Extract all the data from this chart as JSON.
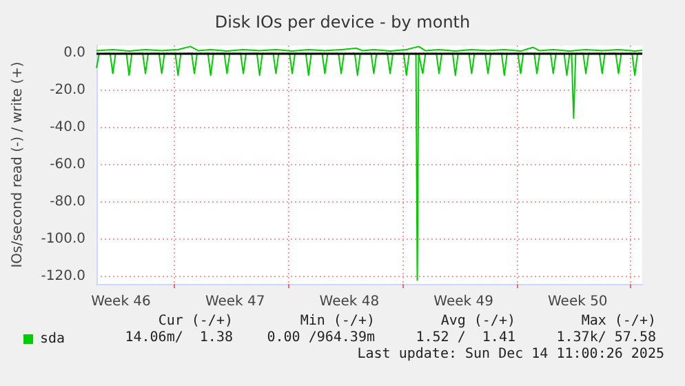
{
  "chart_data": {
    "type": "line",
    "title": "Disk IOs per device - by month",
    "ylabel": "IOs/second read (-) / write (+)",
    "xlim": [
      "2025-11-11T00:00",
      "2025-12-14T11:00"
    ],
    "xticks": [
      {
        "value": "2025-11-12T12:00",
        "label": "Week 46"
      },
      {
        "value": "2025-11-19T12:00",
        "label": "Week 47"
      },
      {
        "value": "2025-11-26T12:00",
        "label": "Week 48"
      },
      {
        "value": "2025-12-03T12:00",
        "label": "Week 49"
      },
      {
        "value": "2025-12-10T12:00",
        "label": "Week 50"
      },
      {
        "value": "2025-11-15T18:00",
        "label": null
      },
      {
        "value": "2025-11-22T18:00",
        "label": null
      },
      {
        "value": "2025-11-29T18:00",
        "label": null
      },
      {
        "value": "2025-12-06T18:00",
        "label": null
      },
      {
        "value": "2025-12-13T18:00",
        "label": null
      }
    ],
    "ylim": [
      -124,
      4
    ],
    "yticks": [
      {
        "value": -120,
        "label": "-120.0"
      },
      {
        "value": -100,
        "label": "-100.0"
      },
      {
        "value": -80,
        "label": "-80.0"
      },
      {
        "value": -60,
        "label": "-60.0"
      },
      {
        "value": -40,
        "label": "-40.0"
      },
      {
        "value": -20,
        "label": "-20.0"
      },
      {
        "value": 0,
        "label": "0.0"
      }
    ],
    "grid": true,
    "legend": "bottom left",
    "marker": "none",
    "line_style": "solid",
    "ref_lines": [
      {
        "axis": "y",
        "value": 0,
        "label": null,
        "color": "#000000"
      }
    ],
    "series": [
      {
        "name": "sda",
        "color": "#00cc00",
        "x": [
          "2025-11-11T00:00",
          "2025-11-11T04:00",
          "2025-11-11T20:00",
          "2025-11-12T00:00",
          "2025-11-12T04:00",
          "2025-11-12T20:00",
          "2025-11-13T00:00",
          "2025-11-13T04:00",
          "2025-11-13T20:00",
          "2025-11-14T00:00",
          "2025-11-14T04:00",
          "2025-11-14T20:00",
          "2025-11-15T00:00",
          "2025-11-15T04:00",
          "2025-11-15T20:00",
          "2025-11-16T00:00",
          "2025-11-16T04:00",
          "2025-11-16T20:00",
          "2025-11-17T00:00",
          "2025-11-17T04:00",
          "2025-11-17T20:00",
          "2025-11-18T00:00",
          "2025-11-18T04:00",
          "2025-11-18T20:00",
          "2025-11-19T00:00",
          "2025-11-19T04:00",
          "2025-11-19T20:00",
          "2025-11-20T00:00",
          "2025-11-20T04:00",
          "2025-11-20T20:00",
          "2025-11-21T00:00",
          "2025-11-21T04:00",
          "2025-11-21T20:00",
          "2025-11-22T00:00",
          "2025-11-22T04:00",
          "2025-11-22T20:00",
          "2025-11-23T00:00",
          "2025-11-23T04:00",
          "2025-11-23T20:00",
          "2025-11-24T00:00",
          "2025-11-24T04:00",
          "2025-11-24T20:00",
          "2025-11-25T00:00",
          "2025-11-25T04:00",
          "2025-11-25T20:00",
          "2025-11-26T00:00",
          "2025-11-26T04:00",
          "2025-11-26T20:00",
          "2025-11-27T00:00",
          "2025-11-27T04:00",
          "2025-11-27T20:00",
          "2025-11-28T00:00",
          "2025-11-28T04:00",
          "2025-11-28T20:00",
          "2025-11-29T00:00",
          "2025-11-29T04:00",
          "2025-11-29T20:00",
          "2025-11-30T00:00",
          "2025-11-30T04:00",
          "2025-11-30T14:00",
          "2025-11-30T16:00",
          "2025-11-30T18:00",
          "2025-12-01T00:00",
          "2025-12-01T04:00",
          "2025-12-01T20:00",
          "2025-12-02T00:00",
          "2025-12-02T04:00",
          "2025-12-02T20:00",
          "2025-12-03T00:00",
          "2025-12-03T04:00",
          "2025-12-03T20:00",
          "2025-12-04T00:00",
          "2025-12-04T04:00",
          "2025-12-04T20:00",
          "2025-12-05T00:00",
          "2025-12-05T04:00",
          "2025-12-05T20:00",
          "2025-12-06T00:00",
          "2025-12-06T04:00",
          "2025-12-06T20:00",
          "2025-12-07T00:00",
          "2025-12-07T04:00",
          "2025-12-07T20:00",
          "2025-12-08T00:00",
          "2025-12-08T04:00",
          "2025-12-08T20:00",
          "2025-12-09T00:00",
          "2025-12-09T04:00",
          "2025-12-09T16:00",
          "2025-12-09T20:00",
          "2025-12-10T00:00",
          "2025-12-10T03:00",
          "2025-12-10T06:00",
          "2025-12-10T09:00",
          "2025-12-10T20:00",
          "2025-12-11T00:00",
          "2025-12-11T04:00",
          "2025-12-11T20:00",
          "2025-12-12T00:00",
          "2025-12-12T04:00",
          "2025-12-12T20:00",
          "2025-12-13T00:00",
          "2025-12-13T04:00",
          "2025-12-13T20:00",
          "2025-12-14T00:00",
          "2025-12-14T04:00",
          "2025-12-14T11:00"
        ],
        "values": [
          -8,
          -0.4,
          -0.3,
          -11,
          -0.4,
          -0.3,
          -12,
          -0.4,
          -0.3,
          -11,
          -0.4,
          -0.3,
          -11,
          -0.4,
          -0.3,
          -12,
          -0.4,
          -0.3,
          -11,
          -0.4,
          -0.3,
          -12,
          -0.4,
          -0.3,
          -11,
          -0.4,
          -0.3,
          -11,
          -0.4,
          -0.3,
          -12,
          -0.4,
          -0.3,
          -11,
          -0.4,
          -0.3,
          -11,
          -0.4,
          -0.3,
          -12,
          -0.4,
          -0.3,
          -11,
          -0.4,
          -0.3,
          -11,
          -0.4,
          -0.3,
          -12,
          -0.4,
          -0.3,
          -11,
          -0.4,
          -0.3,
          -11,
          -0.4,
          -0.3,
          -12,
          -0.4,
          -0.4,
          -122,
          -0.4,
          -11,
          -0.4,
          -0.3,
          -11,
          -0.4,
          -0.3,
          -12,
          -0.4,
          -0.3,
          -11,
          -0.4,
          -0.3,
          -11,
          -0.4,
          -0.3,
          -12,
          -0.4,
          -0.3,
          -11,
          -0.4,
          -0.3,
          -11,
          -0.4,
          -0.3,
          -11,
          -0.4,
          -0.4,
          -12,
          -0.4,
          -0.4,
          -35,
          -0.4,
          -0.3,
          -11,
          -0.4,
          -0.3,
          -11,
          -0.4,
          -0.3,
          -11,
          -0.4,
          -0.3,
          -12,
          -0.4,
          -0.2
        ]
      },
      {
        "color": "#00cc00",
        "x": [
          "2025-11-11T00:00",
          "2025-11-12T00:00",
          "2025-11-13T00:00",
          "2025-11-14T00:00",
          "2025-11-15T00:00",
          "2025-11-16T00:00",
          "2025-11-16T18:00",
          "2025-11-17T06:00",
          "2025-11-18T00:00",
          "2025-11-19T00:00",
          "2025-11-20T00:00",
          "2025-11-21T00:00",
          "2025-11-22T00:00",
          "2025-11-23T00:00",
          "2025-11-24T00:00",
          "2025-11-25T00:00",
          "2025-11-26T00:00",
          "2025-11-26T22:00",
          "2025-11-27T08:00",
          "2025-11-28T00:00",
          "2025-11-29T00:00",
          "2025-11-30T00:00",
          "2025-11-30T18:00",
          "2025-12-01T04:00",
          "2025-12-02T00:00",
          "2025-12-03T00:00",
          "2025-12-04T00:00",
          "2025-12-05T00:00",
          "2025-12-06T00:00",
          "2025-12-07T00:00",
          "2025-12-07T18:00",
          "2025-12-08T04:00",
          "2025-12-09T00:00",
          "2025-12-10T00:00",
          "2025-12-11T00:00",
          "2025-12-12T00:00",
          "2025-12-13T00:00",
          "2025-12-14T00:00",
          "2025-12-14T11:00"
        ],
        "values": [
          1.2,
          1.8,
          1.0,
          1.8,
          1.2,
          1.8,
          3.5,
          1.2,
          1.8,
          1.0,
          1.8,
          1.2,
          1.8,
          1.0,
          1.8,
          1.2,
          1.8,
          2.5,
          1.2,
          1.8,
          1.0,
          1.8,
          3.5,
          1.2,
          1.8,
          1.0,
          1.8,
          1.2,
          1.8,
          1.0,
          3,
          1.2,
          1.8,
          1.0,
          1.8,
          1.2,
          1.8,
          1.0,
          1.4
        ]
      }
    ],
    "annotations": [
      "Cur (-/+)",
      "Min (-/+)",
      "Avg (-/+)",
      "Max (-/+)",
      "14.06m/  1.38",
      "0.00 /964.39m",
      "1.52 /  1.41",
      "1.37k/ 57.58",
      "Last update: Sun Dec 14 11:00:26 2025"
    ]
  }
}
